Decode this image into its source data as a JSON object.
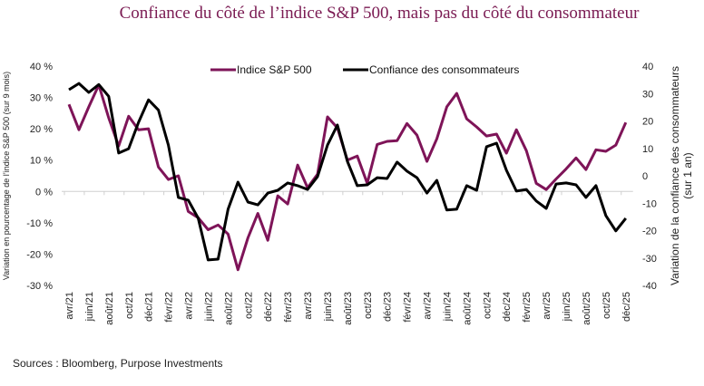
{
  "chart_data": {
    "type": "line",
    "title": "Confiance du côté de l’indice S&P 500, mais pas du côté du consommateur",
    "ylabel_left": "Variation en pourcentage de l’indice S&P 500 (sur 9 mois)",
    "ylabel_right": [
      "Variation de la confiance des consommateurs",
      "(sur 1 an)"
    ],
    "ylim_left": [
      -30,
      40
    ],
    "yticks_left": [
      "40 %",
      "30 %",
      "20 %",
      "10 %",
      "0 %",
      "-10 %",
      "-20 %",
      "-30 %"
    ],
    "ylim_right": [
      -40,
      40
    ],
    "yticks_right": [
      "40",
      "30",
      "20",
      "10",
      "0",
      "-10",
      "-20",
      "-30",
      "-40"
    ],
    "xtick_labels": [
      "avr/21",
      "juin/21",
      "août/21",
      "oct/21",
      "déc/21",
      "févr/22",
      "avr/22",
      "juin/22",
      "août/22",
      "oct/22",
      "déc/22",
      "févr/23",
      "avr/23",
      "juin/23",
      "août/23",
      "oct/23",
      "déc/23",
      "févr/24",
      "avr/24",
      "juin/24",
      "août/24",
      "oct/24",
      "déc/24",
      "févr/25",
      "avr/25",
      "juin/25",
      "août/25",
      "oct/25",
      "déc/25"
    ],
    "x_start": "2021-04",
    "x_end": "2025-12",
    "legend_position": "top",
    "grid": false,
    "series": [
      {
        "name": "Indice S&P 500",
        "axis": "left",
        "color": "#7e1458",
        "values": [
          27.8,
          19.7,
          27,
          34,
          23.5,
          14.5,
          24,
          19.7,
          20,
          7.8,
          3.8,
          5,
          -6.4,
          -8.4,
          -12.2,
          -10.7,
          -13.6,
          -25,
          -14.8,
          -7,
          -15.6,
          -1.4,
          -4,
          8.4,
          1.2,
          5.5,
          23.8,
          20.3,
          10,
          11.3,
          2.6,
          15,
          16,
          16.2,
          21.7,
          18,
          9.6,
          16.8,
          27,
          31.3,
          23.2,
          20.6,
          17.7,
          18.3,
          12.2,
          19.7,
          13,
          2.6,
          0.6,
          4,
          7.2,
          10.7,
          7,
          13.3,
          12.8,
          14.8,
          22
        ]
      },
      {
        "name": "Confiance des consommateurs",
        "axis": "right",
        "color": "#000000",
        "values": [
          31.4,
          33.7,
          30.4,
          33.3,
          29,
          8.3,
          9.9,
          19.5,
          27.7,
          24,
          11.2,
          -7.9,
          -8.9,
          -15.5,
          -30.7,
          -30.4,
          -12.2,
          -2.3,
          -9.6,
          -10.6,
          -6.3,
          -5.3,
          -2.6,
          -3.6,
          -5,
          -0.3,
          11.2,
          18.5,
          5.3,
          -3.6,
          -3.3,
          -0.7,
          -1,
          5,
          1.7,
          -0.7,
          -6.3,
          -1.7,
          -12.5,
          -12.2,
          -3.6,
          -5.3,
          10.6,
          11.9,
          2,
          -5.6,
          -5,
          -9.2,
          -11.9,
          -3,
          -2.6,
          -3.3,
          -7.9,
          -3.6,
          -14.5,
          -20.1,
          -15.5
        ]
      }
    ]
  },
  "source": "Sources : Bloomberg, Purpose Investments"
}
